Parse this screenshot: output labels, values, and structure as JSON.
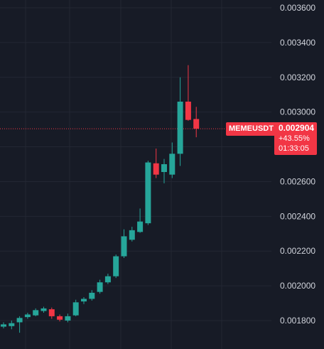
{
  "chart_data": {
    "type": "candlestick",
    "symbol": "MEMEUSDT",
    "ylim": [
      0.0017,
      0.00366
    ],
    "y_ticks": [
      "0.003600",
      "0.003400",
      "0.003200",
      "0.003000",
      "0.002800",
      "0.002600",
      "0.002400",
      "0.002200",
      "0.002000",
      "0.001800"
    ],
    "last_price": "0.002904",
    "change": "+43.55%",
    "countdown": "01:33:05",
    "colors": {
      "up": "#26a69a",
      "down": "#f23645",
      "background": "#171b26",
      "grid": "#232733",
      "text": "#d1d4dc"
    },
    "candles": [
      {
        "o": 0.001765,
        "h": 0.00179,
        "l": 0.001755,
        "c": 0.001778
      },
      {
        "o": 0.001768,
        "h": 0.0018,
        "l": 0.00175,
        "c": 0.001785
      },
      {
        "o": 0.00179,
        "h": 0.001825,
        "l": 0.00173,
        "c": 0.001815
      },
      {
        "o": 0.00182,
        "h": 0.001845,
        "l": 0.00181,
        "c": 0.001835
      },
      {
        "o": 0.00183,
        "h": 0.00187,
        "l": 0.001825,
        "c": 0.00186
      },
      {
        "o": 0.001855,
        "h": 0.00188,
        "l": 0.001845,
        "c": 0.00187
      },
      {
        "o": 0.001865,
        "h": 0.001875,
        "l": 0.00181,
        "c": 0.001825
      },
      {
        "o": 0.001825,
        "h": 0.001835,
        "l": 0.001795,
        "c": 0.001805
      },
      {
        "o": 0.0018,
        "h": 0.00184,
        "l": 0.00179,
        "c": 0.001825
      },
      {
        "o": 0.00183,
        "h": 0.00192,
        "l": 0.001825,
        "c": 0.001905
      },
      {
        "o": 0.00191,
        "h": 0.001935,
        "l": 0.001895,
        "c": 0.001925
      },
      {
        "o": 0.001925,
        "h": 0.001975,
        "l": 0.001915,
        "c": 0.00196
      },
      {
        "o": 0.001965,
        "h": 0.002035,
        "l": 0.001955,
        "c": 0.00202
      },
      {
        "o": 0.00202,
        "h": 0.00207,
        "l": 0.00201,
        "c": 0.002055
      },
      {
        "o": 0.002055,
        "h": 0.00218,
        "l": 0.002045,
        "c": 0.00217
      },
      {
        "o": 0.00217,
        "h": 0.002325,
        "l": 0.00216,
        "c": 0.002285
      },
      {
        "o": 0.002265,
        "h": 0.00234,
        "l": 0.002255,
        "c": 0.00232
      },
      {
        "o": 0.00231,
        "h": 0.002445,
        "l": 0.002305,
        "c": 0.00237
      },
      {
        "o": 0.00236,
        "h": 0.00272,
        "l": 0.00235,
        "c": 0.00271
      },
      {
        "o": 0.002705,
        "h": 0.00279,
        "l": 0.00262,
        "c": 0.00264
      },
      {
        "o": 0.002655,
        "h": 0.00273,
        "l": 0.00259,
        "c": 0.0027
      },
      {
        "o": 0.00264,
        "h": 0.002825,
        "l": 0.00262,
        "c": 0.00276
      },
      {
        "o": 0.00276,
        "h": 0.0032,
        "l": 0.00269,
        "c": 0.00306
      },
      {
        "o": 0.00306,
        "h": 0.00327,
        "l": 0.00295,
        "c": 0.002955
      },
      {
        "o": 0.00296,
        "h": 0.00303,
        "l": 0.002855,
        "c": 0.002904
      }
    ]
  }
}
